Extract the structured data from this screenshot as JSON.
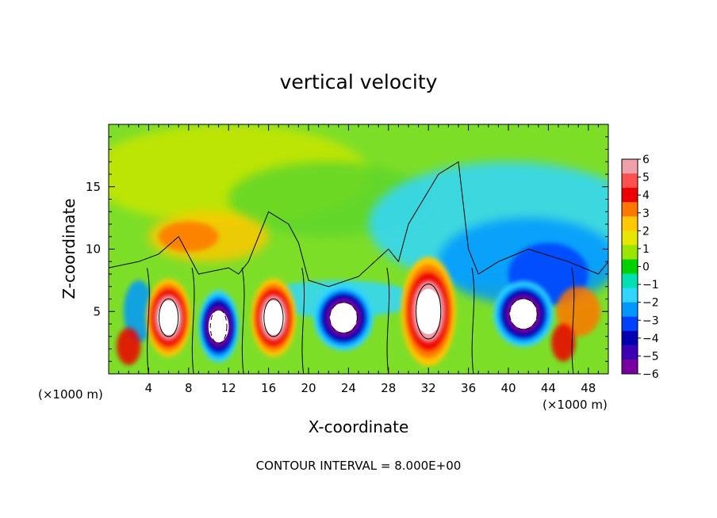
{
  "chart_data": {
    "type": "heatmap",
    "title": "vertical velocity",
    "xlabel": "X-coordinate",
    "ylabel": "Z-coordinate",
    "x_unit_left": "(×1000 m)",
    "x_unit_right": "(×1000 m)",
    "xlim": [
      0,
      50
    ],
    "ylim": [
      0,
      20
    ],
    "x_ticks": [
      "4",
      "8",
      "12",
      "16",
      "20",
      "24",
      "28",
      "32",
      "36",
      "40",
      "44",
      "48"
    ],
    "y_ticks": [
      "5",
      "10",
      "15"
    ],
    "colorbar": {
      "range": [
        -6,
        6
      ],
      "labels": [
        "6",
        "5",
        "4",
        "3",
        "2",
        "1",
        "0",
        "−1",
        "−2",
        "−3",
        "−4",
        "−5",
        "−6"
      ],
      "colors": [
        "#f0a0a8",
        "#ff5050",
        "#ee0000",
        "#ff7700",
        "#ffc800",
        "#e6e600",
        "#9be600",
        "#00d200",
        "#00e0b0",
        "#30d6ff",
        "#0098ff",
        "#0040ff",
        "#0000b0",
        "#3c00b4",
        "#7800a0"
      ]
    },
    "annotation": "CONTOUR INTERVAL = 8.000E+00",
    "cells": [
      {
        "x": 6,
        "z": 4.5,
        "w": 3.5,
        "h": 5.5,
        "core": "up"
      },
      {
        "x": 11,
        "z": 3.8,
        "w": 3,
        "h": 5,
        "core": "down"
      },
      {
        "x": 16.5,
        "z": 4.5,
        "w": 3.5,
        "h": 5.5,
        "core": "up"
      },
      {
        "x": 23.5,
        "z": 4.5,
        "w": 5,
        "h": 4.5,
        "core": "down"
      },
      {
        "x": 32,
        "z": 5,
        "w": 4.5,
        "h": 8,
        "core": "up"
      },
      {
        "x": 41.5,
        "z": 4.8,
        "w": 5,
        "h": 4.5,
        "core": "down"
      }
    ]
  }
}
